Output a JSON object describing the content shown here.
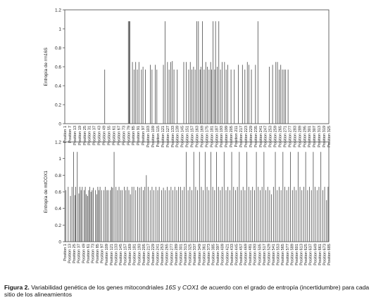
{
  "figure": {
    "caption_label": "Figura 2.",
    "caption_p1": " Variabilidad genética de los genes mitocondriales ",
    "caption_gene1": "16S",
    "caption_p2": " y ",
    "caption_gene2": "COX1",
    "caption_p3": " de acuerdo con el grado de entropía (incertidumbre) para cada sitio de los alineamientos"
  },
  "chart_data": [
    {
      "type": "bar",
      "ylabel": "Entropía de rrn16S",
      "ylim": [
        0,
        1.2
      ],
      "yticks": [
        "0",
        "0.2",
        "0.4",
        "0.6",
        "0.8",
        "1",
        "1.2"
      ],
      "x_range": [
        1,
        325
      ],
      "tick_labels": [
        "Position 1",
        "Position 7",
        "Position 13",
        "Position 19",
        "Position 25",
        "Position 31",
        "Position 37",
        "Position 43",
        "Position 49",
        "Position 55",
        "Position 61",
        "Position 67",
        "Position 73",
        "Position 79",
        "Position 85",
        "Position 91",
        "Position 97",
        "Position 103",
        "Position 109",
        "Position 115",
        "Position 121",
        "Position 127",
        "Position 133",
        "Position 139",
        "Position 145",
        "Position 151",
        "Position 157",
        "Position 163",
        "Position 169",
        "Position 175",
        "Position 181",
        "Position 187",
        "Position 193",
        "Position 199",
        "Position 205",
        "Position 211",
        "Position 217",
        "Position 223",
        "Position 229",
        "Position 235",
        "Position 241",
        "Position 247",
        "Position 253",
        "Position 259",
        "Position 265",
        "Position 271",
        "Position 277",
        "Position 283",
        "Position 289",
        "Position 295",
        "Position 301",
        "Position 307",
        "Position 313",
        "Position 319",
        "Position 325"
      ],
      "bars": [
        [
          50,
          0.57
        ],
        [
          79,
          1.08
        ],
        [
          80,
          1.08
        ],
        [
          81,
          1.08
        ],
        [
          84,
          0.65
        ],
        [
          86,
          0.57
        ],
        [
          88,
          0.65
        ],
        [
          90,
          0.57
        ],
        [
          92,
          0.65
        ],
        [
          95,
          0.57
        ],
        [
          97,
          0.6
        ],
        [
          100,
          0.57
        ],
        [
          106,
          0.62
        ],
        [
          108,
          0.57
        ],
        [
          112,
          0.62
        ],
        [
          114,
          0.57
        ],
        [
          122,
          0.62
        ],
        [
          124,
          1.08
        ],
        [
          127,
          0.65
        ],
        [
          129,
          0.57
        ],
        [
          131,
          0.65
        ],
        [
          133,
          0.66
        ],
        [
          135,
          0.57
        ],
        [
          139,
          0.57
        ],
        [
          147,
          0.65
        ],
        [
          150,
          0.65
        ],
        [
          153,
          0.57
        ],
        [
          155,
          0.65
        ],
        [
          157,
          0.57
        ],
        [
          159,
          0.6
        ],
        [
          161,
          0.57
        ],
        [
          163,
          1.08
        ],
        [
          165,
          1.08
        ],
        [
          167,
          0.57
        ],
        [
          168,
          0.6
        ],
        [
          170,
          1.08
        ],
        [
          172,
          0.57
        ],
        [
          174,
          0.65
        ],
        [
          176,
          0.6
        ],
        [
          178,
          0.57
        ],
        [
          180,
          0.65
        ],
        [
          181,
          0.57
        ],
        [
          183,
          1.08
        ],
        [
          185,
          0.57
        ],
        [
          186,
          1.08
        ],
        [
          188,
          0.6
        ],
        [
          190,
          1.08
        ],
        [
          192,
          0.57
        ],
        [
          194,
          0.65
        ],
        [
          197,
          0.65
        ],
        [
          199,
          0.57
        ],
        [
          201,
          0.62
        ],
        [
          205,
          0.57
        ],
        [
          209,
          0.57
        ],
        [
          214,
          0.62
        ],
        [
          219,
          0.62
        ],
        [
          222,
          0.57
        ],
        [
          225,
          0.65
        ],
        [
          227,
          0.62
        ],
        [
          230,
          0.57
        ],
        [
          235,
          0.62
        ],
        [
          238,
          1.08
        ],
        [
          252,
          0.6
        ],
        [
          256,
          0.62
        ],
        [
          260,
          0.65
        ],
        [
          262,
          0.65
        ],
        [
          264,
          0.57
        ],
        [
          266,
          0.62
        ],
        [
          268,
          0.57
        ],
        [
          270,
          0.57
        ],
        [
          272,
          0.57
        ],
        [
          275,
          0.57
        ]
      ]
    },
    {
      "type": "bar",
      "ylabel": "Entropía de mtCOX1",
      "ylim": [
        0,
        1.2
      ],
      "yticks": [
        "0",
        "0.2",
        "0.4",
        "0.6",
        "0.8",
        "1",
        "1.2"
      ],
      "x_range": [
        1,
        697
      ],
      "tick_labels": [
        "Position 1",
        "Position 13",
        "Position 25",
        "Position 37",
        "Position 49",
        "Position 61",
        "Position 73",
        "Position 85",
        "Position 97",
        "Position 109",
        "Position 121",
        "Position 133",
        "Position 145",
        "Position 157",
        "Position 169",
        "Position 181",
        "Position 193",
        "Position 205",
        "Position 217",
        "Position 229",
        "Position 241",
        "Position 253",
        "Position 265",
        "Position 277",
        "Position 289",
        "Position 301",
        "Position 313",
        "Position 325",
        "Position 337",
        "Position 349",
        "Position 361",
        "Position 373",
        "Position 385",
        "Position 397",
        "Position 409",
        "Position 421",
        "Position 433",
        "Position 445",
        "Position 457",
        "Position 469",
        "Position 481",
        "Position 493",
        "Position 505",
        "Position 517",
        "Position 529",
        "Position 541",
        "Position 553",
        "Position 565",
        "Position 577",
        "Position 589",
        "Position 601",
        "Position 613",
        "Position 625",
        "Position 637",
        "Position 649",
        "Position 661",
        "Position 673",
        "Position 685"
      ],
      "bars": [
        [
          4,
          0.62
        ],
        [
          10,
          0.66
        ],
        [
          16,
          0.55
        ],
        [
          20,
          0.66
        ],
        [
          24,
          1.08
        ],
        [
          28,
          0.56
        ],
        [
          30,
          0.66
        ],
        [
          34,
          1.08
        ],
        [
          38,
          0.58
        ],
        [
          41,
          0.66
        ],
        [
          44,
          0.62
        ],
        [
          47,
          0.66
        ],
        [
          52,
          0.62
        ],
        [
          55,
          0.66
        ],
        [
          58,
          0.57
        ],
        [
          61,
          0.55
        ],
        [
          64,
          0.62
        ],
        [
          67,
          0.66
        ],
        [
          70,
          0.6
        ],
        [
          73,
          0.62
        ],
        [
          76,
          0.65
        ],
        [
          82,
          0.62
        ],
        [
          85,
          0.57
        ],
        [
          88,
          0.66
        ],
        [
          91,
          0.62
        ],
        [
          94,
          0.66
        ],
        [
          98,
          0.62
        ],
        [
          104,
          0.62
        ],
        [
          108,
          0.66
        ],
        [
          112,
          0.62
        ],
        [
          115,
          0.62
        ],
        [
          121,
          0.62
        ],
        [
          124,
          0.66
        ],
        [
          127,
          0.65
        ],
        [
          131,
          1.08
        ],
        [
          136,
          0.66
        ],
        [
          140,
          0.62
        ],
        [
          144,
          0.66
        ],
        [
          148,
          0.62
        ],
        [
          152,
          0.62
        ],
        [
          158,
          0.66
        ],
        [
          162,
          0.62
        ],
        [
          166,
          0.66
        ],
        [
          170,
          0.62
        ],
        [
          174,
          0.57
        ],
        [
          178,
          0.66
        ],
        [
          183,
          0.66
        ],
        [
          188,
          0.62
        ],
        [
          193,
          0.66
        ],
        [
          198,
          0.65
        ],
        [
          203,
          0.66
        ],
        [
          208,
          0.62
        ],
        [
          212,
          0.66
        ],
        [
          216,
          0.8
        ],
        [
          221,
          0.66
        ],
        [
          226,
          0.62
        ],
        [
          231,
          0.66
        ],
        [
          236,
          0.62
        ],
        [
          241,
          0.66
        ],
        [
          246,
          0.62
        ],
        [
          250,
          0.66
        ],
        [
          256,
          0.62
        ],
        [
          261,
          0.65
        ],
        [
          266,
          0.62
        ],
        [
          271,
          0.66
        ],
        [
          276,
          0.62
        ],
        [
          281,
          0.66
        ],
        [
          286,
          0.62
        ],
        [
          291,
          0.66
        ],
        [
          296,
          0.62
        ],
        [
          301,
          0.66
        ],
        [
          306,
          0.66
        ],
        [
          311,
          0.62
        ],
        [
          316,
          0.66
        ],
        [
          321,
          1.08
        ],
        [
          326,
          0.62
        ],
        [
          331,
          0.66
        ],
        [
          336,
          0.62
        ],
        [
          341,
          1.08
        ],
        [
          346,
          0.66
        ],
        [
          351,
          0.62
        ],
        [
          356,
          1.08
        ],
        [
          361,
          0.66
        ],
        [
          366,
          0.62
        ],
        [
          371,
          1.08
        ],
        [
          376,
          0.66
        ],
        [
          381,
          0.62
        ],
        [
          386,
          1.08
        ],
        [
          391,
          0.66
        ],
        [
          396,
          0.62
        ],
        [
          401,
          1.08
        ],
        [
          406,
          0.66
        ],
        [
          411,
          0.62
        ],
        [
          416,
          0.66
        ],
        [
          421,
          1.08
        ],
        [
          426,
          0.62
        ],
        [
          431,
          0.66
        ],
        [
          436,
          0.62
        ],
        [
          441,
          1.08
        ],
        [
          446,
          0.66
        ],
        [
          451,
          0.62
        ],
        [
          456,
          0.66
        ],
        [
          461,
          1.08
        ],
        [
          466,
          0.62
        ],
        [
          471,
          0.66
        ],
        [
          476,
          0.62
        ],
        [
          481,
          1.08
        ],
        [
          486,
          0.66
        ],
        [
          491,
          0.62
        ],
        [
          496,
          0.66
        ],
        [
          501,
          0.62
        ],
        [
          506,
          1.08
        ],
        [
          511,
          0.66
        ],
        [
          516,
          0.62
        ],
        [
          521,
          0.66
        ],
        [
          526,
          1.08
        ],
        [
          531,
          0.62
        ],
        [
          536,
          0.66
        ],
        [
          541,
          0.62
        ],
        [
          546,
          0.57
        ],
        [
          551,
          0.66
        ],
        [
          556,
          1.08
        ],
        [
          561,
          0.62
        ],
        [
          566,
          0.66
        ],
        [
          571,
          0.62
        ],
        [
          576,
          1.08
        ],
        [
          581,
          0.66
        ],
        [
          586,
          0.62
        ],
        [
          591,
          0.66
        ],
        [
          596,
          1.08
        ],
        [
          601,
          0.62
        ],
        [
          606,
          0.66
        ],
        [
          611,
          0.62
        ],
        [
          616,
          1.08
        ],
        [
          621,
          0.66
        ],
        [
          626,
          0.62
        ],
        [
          631,
          0.66
        ],
        [
          636,
          1.08
        ],
        [
          641,
          0.62
        ],
        [
          646,
          0.66
        ],
        [
          651,
          0.62
        ],
        [
          656,
          1.08
        ],
        [
          661,
          0.66
        ],
        [
          666,
          0.62
        ],
        [
          671,
          0.66
        ],
        [
          676,
          1.08
        ],
        [
          681,
          0.62
        ],
        [
          686,
          0.66
        ],
        [
          691,
          0.5
        ],
        [
          695,
          0.66
        ]
      ]
    }
  ]
}
